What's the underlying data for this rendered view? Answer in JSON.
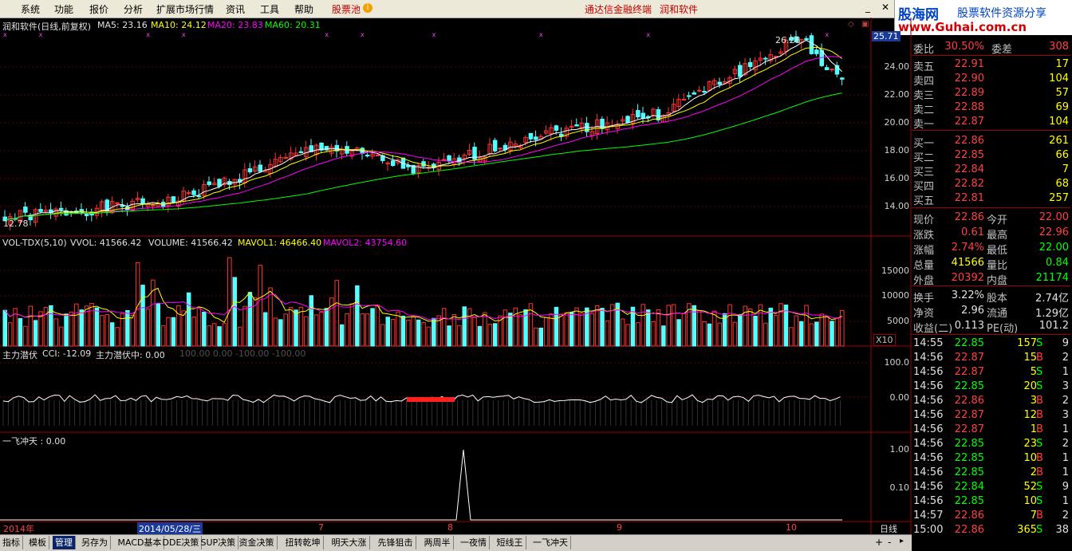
{
  "menu": {
    "items": [
      "系统",
      "功能",
      "报价",
      "分析",
      "扩展市场行情",
      "资讯",
      "工具",
      "帮助"
    ],
    "stock_pool": "股票池",
    "links": [
      "通达信金融终端",
      "润和软件"
    ]
  },
  "brand": {
    "name": "股海网",
    "tagline": "股票软件资源分享",
    "url": "www.Guhai.com.cn"
  },
  "main_chart": {
    "title": "润和软件(日线,前复权)",
    "ma5": "MA5: 23.16",
    "ma10": "MA10: 24.12",
    "ma20": "MA20: 23.83",
    "ma60": "MA60: 20.31",
    "price_axis": [
      "24.00",
      "22.00",
      "20.00",
      "18.00",
      "16.00",
      "14.00"
    ],
    "current_price_tag": "25.71",
    "high_marker": "26.28",
    "low_marker": "12.78",
    "colors": {
      "ma5": "#ffffff",
      "ma10": "#ffff00",
      "ma20": "#ff00ff",
      "ma60": "#00ff00",
      "up": "#ff3232",
      "down": "#54ffff"
    }
  },
  "vol_chart": {
    "title": "VOL-TDX(5,10)",
    "vvol": "VVOL: 41566.42",
    "volume": "VOLUME: 41566.42",
    "mavol1": "MAVOL1: 46466.40",
    "mavol2": "MAVOL2: 43754.60",
    "axis": [
      "15000",
      "10000",
      "5000"
    ],
    "unit": "X10"
  },
  "cci_chart": {
    "title": "主力潜伏",
    "cci": "CCI: -12.09",
    "sub": "主力潜伏中: 0.00",
    "hint": "100.00  0.00  -100.00  -100.00",
    "axis": [
      "100.0",
      "0.00"
    ]
  },
  "yfct_chart": {
    "title": "一飞冲天 : 0.00",
    "axis": [
      "1.00",
      "0.10"
    ]
  },
  "date_axis": {
    "year": "2014年",
    "cursor_date": "2014/05/28/三",
    "months": [
      "7",
      "8",
      "9",
      "10"
    ],
    "period": "日线"
  },
  "tabs": [
    "指标",
    "模板",
    "管理",
    "另存为",
    "MACD基本",
    "DDE决策",
    "SUP决策",
    "资金决策",
    "扭转乾坤",
    "明天大涨",
    "先锋狙击",
    "两周半",
    "一夜情",
    "短线王",
    "一飞冲天"
  ],
  "tab_selected": "管理",
  "quote": {
    "weibi": {
      "label": "委比",
      "value": "30.50%",
      "label2": "委差",
      "value2": "308"
    },
    "asks": [
      {
        "label": "卖五",
        "price": "22.91",
        "vol": "17"
      },
      {
        "label": "卖四",
        "price": "22.90",
        "vol": "104"
      },
      {
        "label": "卖三",
        "price": "22.89",
        "vol": "57"
      },
      {
        "label": "卖二",
        "price": "22.88",
        "vol": "69"
      },
      {
        "label": "卖一",
        "price": "22.87",
        "vol": "104"
      }
    ],
    "bids": [
      {
        "label": "买一",
        "price": "22.86",
        "vol": "261"
      },
      {
        "label": "买二",
        "price": "22.85",
        "vol": "66"
      },
      {
        "label": "买三",
        "price": "22.84",
        "vol": "7"
      },
      {
        "label": "买四",
        "price": "22.82",
        "vol": "68"
      },
      {
        "label": "买五",
        "price": "22.81",
        "vol": "257"
      }
    ],
    "stats": [
      {
        "l1": "现价",
        "v1": "22.86",
        "l2": "今开",
        "v2": "22.00"
      },
      {
        "l1": "涨跌",
        "v1": "0.61",
        "l2": "最高",
        "v2": "22.96"
      },
      {
        "l1": "涨幅",
        "v1": "2.74%",
        "l2": "最低",
        "v2": "22.00"
      },
      {
        "l1": "总量",
        "v1": "41566",
        "l2": "量比",
        "v2": "0.84"
      },
      {
        "l1": "外盘",
        "v1": "20392",
        "l2": "内盘",
        "v2": "21174"
      }
    ],
    "fund": [
      {
        "l1": "换手",
        "v1": "3.22%",
        "l2": "股本",
        "v2": "2.74亿"
      },
      {
        "l1": "净资",
        "v1": "2.96",
        "l2": "流通",
        "v2": "1.29亿"
      },
      {
        "l1": "收益(二)",
        "v1": "0.113",
        "l2": "PE(动)",
        "v2": "101.2"
      }
    ]
  },
  "ticks": [
    {
      "t": "14:55",
      "p": "22.85",
      "v": "157",
      "d": "S",
      "n": "9"
    },
    {
      "t": "14:56",
      "p": "22.87",
      "v": "15",
      "d": "B",
      "n": "2"
    },
    {
      "t": "14:56",
      "p": "22.87",
      "v": "5",
      "d": "S",
      "n": "1"
    },
    {
      "t": "14:56",
      "p": "22.85",
      "v": "20",
      "d": "S",
      "n": "3"
    },
    {
      "t": "14:56",
      "p": "22.86",
      "v": "3",
      "d": "B",
      "n": "2"
    },
    {
      "t": "14:56",
      "p": "22.87",
      "v": "12",
      "d": "B",
      "n": "3"
    },
    {
      "t": "14:56",
      "p": "22.87",
      "v": "1",
      "d": "B",
      "n": "1"
    },
    {
      "t": "14:56",
      "p": "22.85",
      "v": "23",
      "d": "S",
      "n": "2"
    },
    {
      "t": "14:56",
      "p": "22.85",
      "v": "10",
      "d": "B",
      "n": "1"
    },
    {
      "t": "14:56",
      "p": "22.85",
      "v": "2",
      "d": "B",
      "n": "1"
    },
    {
      "t": "14:56",
      "p": "22.84",
      "v": "52",
      "d": "S",
      "n": "9"
    },
    {
      "t": "14:56",
      "p": "22.85",
      "v": "10",
      "d": "S",
      "n": "1"
    },
    {
      "t": "14:57",
      "p": "22.86",
      "v": "7",
      "d": "B",
      "n": "2"
    },
    {
      "t": "15:00",
      "p": "22.86",
      "v": "365",
      "d": "S",
      "n": "38"
    }
  ]
}
